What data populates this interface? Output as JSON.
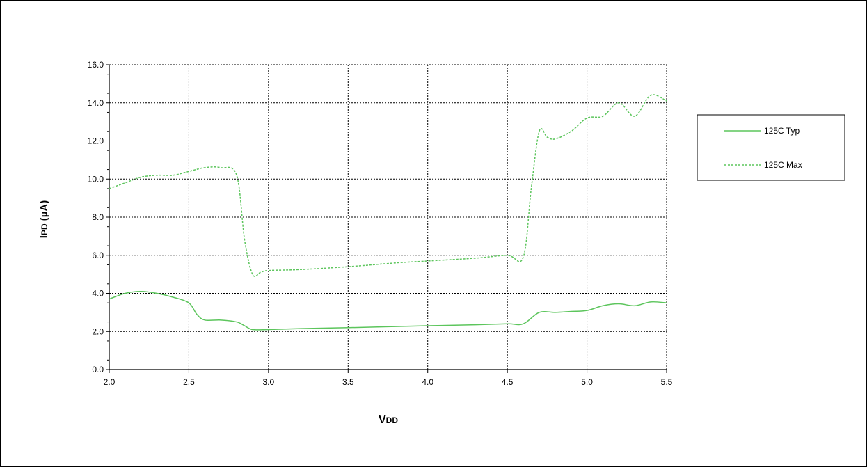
{
  "chart_data": {
    "type": "line",
    "title": "",
    "xlabel": {
      "main": "V",
      "sub": "DD"
    },
    "ylabel": {
      "main": "I",
      "sub": "PD",
      "rest": " (µA)"
    },
    "xlim": [
      2.0,
      5.5
    ],
    "ylim": [
      0.0,
      16.0
    ],
    "xticks": [
      "2.0",
      "2.5",
      "3.0",
      "3.5",
      "4.0",
      "4.5",
      "5.0",
      "5.5"
    ],
    "yticks": [
      "0.0",
      "2.0",
      "4.0",
      "6.0",
      "8.0",
      "10.0",
      "12.0",
      "14.0",
      "16.0"
    ],
    "grid": true,
    "legend_position": "right",
    "series_color": "#5cc55c",
    "series": [
      {
        "name": "125C Typ",
        "style": "solid",
        "x": [
          2.0,
          2.1,
          2.2,
          2.3,
          2.4,
          2.5,
          2.55,
          2.6,
          2.7,
          2.8,
          2.85,
          2.9,
          3.0,
          3.2,
          3.5,
          4.0,
          4.3,
          4.5,
          4.6,
          4.7,
          4.8,
          4.9,
          5.0,
          5.1,
          5.2,
          5.3,
          5.4,
          5.5
        ],
        "y": [
          3.7,
          4.0,
          4.1,
          4.0,
          3.8,
          3.5,
          2.9,
          2.6,
          2.6,
          2.5,
          2.3,
          2.1,
          2.1,
          2.15,
          2.2,
          2.3,
          2.35,
          2.4,
          2.4,
          3.0,
          3.0,
          3.05,
          3.1,
          3.35,
          3.45,
          3.35,
          3.55,
          3.5
        ]
      },
      {
        "name": "125C Max",
        "style": "dashed",
        "x": [
          2.0,
          2.1,
          2.2,
          2.3,
          2.4,
          2.5,
          2.6,
          2.7,
          2.8,
          2.85,
          2.9,
          2.95,
          3.0,
          3.2,
          3.5,
          3.8,
          4.0,
          4.3,
          4.5,
          4.6,
          4.65,
          4.7,
          4.75,
          4.8,
          4.9,
          5.0,
          5.1,
          5.2,
          5.3,
          5.4,
          5.5
        ],
        "y": [
          9.5,
          9.8,
          10.1,
          10.2,
          10.2,
          10.4,
          10.6,
          10.6,
          10.2,
          6.8,
          5.0,
          5.1,
          5.2,
          5.25,
          5.4,
          5.6,
          5.7,
          5.85,
          6.0,
          5.9,
          9.5,
          12.5,
          12.2,
          12.1,
          12.5,
          13.2,
          13.3,
          14.0,
          13.3,
          14.4,
          14.1
        ]
      }
    ]
  }
}
